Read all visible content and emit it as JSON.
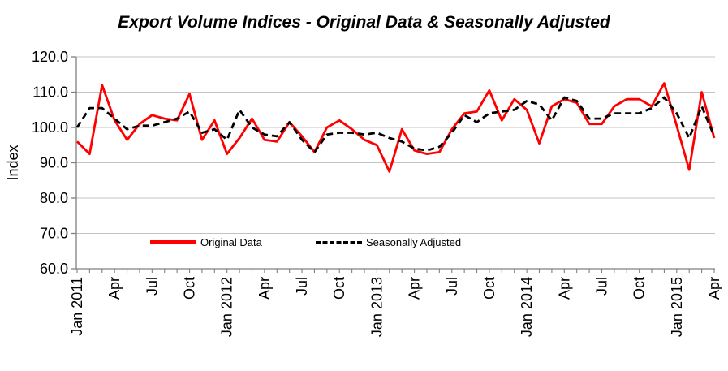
{
  "title": "Export Volume Indices - Original Data & Seasonally Adjusted",
  "y_axis": {
    "label": "Index",
    "min": 60,
    "max": 120,
    "tick_step": 10,
    "tick_labels": [
      "60.0",
      "70.0",
      "80.0",
      "90.0",
      "100.0",
      "110.0",
      "120.0"
    ]
  },
  "x_axis": {
    "label_every_n_months": 3,
    "visible_labels": [
      "Jan 2011",
      "Apr",
      "Jul",
      "Oct",
      "Jan 2012",
      "Apr",
      "Jul",
      "Oct",
      "Jan 2013",
      "Apr",
      "Jul",
      "Oct",
      "Jan 2014",
      "Apr",
      "Jul",
      "Oct",
      "Jan 2015",
      "Apr"
    ]
  },
  "legend": {
    "original_label": "Original Data",
    "seasonal_label": "Seasonally Adjusted"
  },
  "colors": {
    "original_line": "#FF0000",
    "seasonal_line": "#000000",
    "gridline": "#C3C3C3",
    "axis": "#808080",
    "text": "#000000"
  },
  "chart_data": {
    "type": "line",
    "title": "Export Volume Indices - Original Data & Seasonally Adjusted",
    "xlabel": "",
    "ylabel": "Index",
    "ylim": [
      60,
      120
    ],
    "ytick_step": 10,
    "grid": true,
    "legend_position": "inside-bottom-left",
    "x": [
      "Jan 2011",
      "Feb 2011",
      "Mar 2011",
      "Apr 2011",
      "May 2011",
      "Jun 2011",
      "Jul 2011",
      "Aug 2011",
      "Sep 2011",
      "Oct 2011",
      "Nov 2011",
      "Dec 2011",
      "Jan 2012",
      "Feb 2012",
      "Mar 2012",
      "Apr 2012",
      "May 2012",
      "Jun 2012",
      "Jul 2012",
      "Aug 2012",
      "Sep 2012",
      "Oct 2012",
      "Nov 2012",
      "Dec 2012",
      "Jan 2013",
      "Feb 2013",
      "Mar 2013",
      "Apr 2013",
      "May 2013",
      "Jun 2013",
      "Jul 2013",
      "Aug 2013",
      "Sep 2013",
      "Oct 2013",
      "Nov 2013",
      "Dec 2013",
      "Jan 2014",
      "Feb 2014",
      "Mar 2014",
      "Apr 2014",
      "May 2014",
      "Jun 2014",
      "Jul 2014",
      "Aug 2014",
      "Sep 2014",
      "Oct 2014",
      "Nov 2014",
      "Dec 2014",
      "Jan 2015",
      "Feb 2015",
      "Mar 2015",
      "Apr 2015"
    ],
    "series": [
      {
        "name": "Original Data",
        "color": "#FF0000",
        "style": "solid",
        "values": [
          96,
          92.5,
          112,
          102,
          96.5,
          101,
          103.5,
          102.5,
          102,
          109.5,
          96.5,
          102,
          92.5,
          97,
          102.5,
          96.5,
          96,
          101.5,
          97.5,
          93,
          100,
          102,
          99.5,
          96.5,
          95,
          87.5,
          99.5,
          93.5,
          92.5,
          93,
          99.5,
          104,
          104.5,
          110.5,
          102,
          108,
          105,
          95.5,
          106,
          108,
          107,
          101,
          101,
          106,
          108,
          108,
          106,
          112.5,
          100.5,
          88,
          110,
          97
        ]
      },
      {
        "name": "Seasonally Adjusted",
        "color": "#000000",
        "style": "dashed",
        "values": [
          100,
          105.5,
          105.5,
          102.5,
          99.5,
          100.5,
          100.5,
          101.5,
          102.5,
          104.5,
          98.5,
          99.5,
          96.5,
          105,
          100,
          98,
          97.5,
          101.5,
          96.5,
          93,
          98,
          98.5,
          98.5,
          98,
          98.5,
          97,
          96,
          94,
          93.5,
          94.5,
          98.5,
          103.5,
          101.5,
          104,
          104.5,
          105,
          107.5,
          106.5,
          102,
          108.5,
          107.5,
          102.5,
          102.5,
          104,
          104,
          104,
          105.5,
          108.5,
          104,
          97,
          106,
          97.5
        ]
      }
    ]
  }
}
